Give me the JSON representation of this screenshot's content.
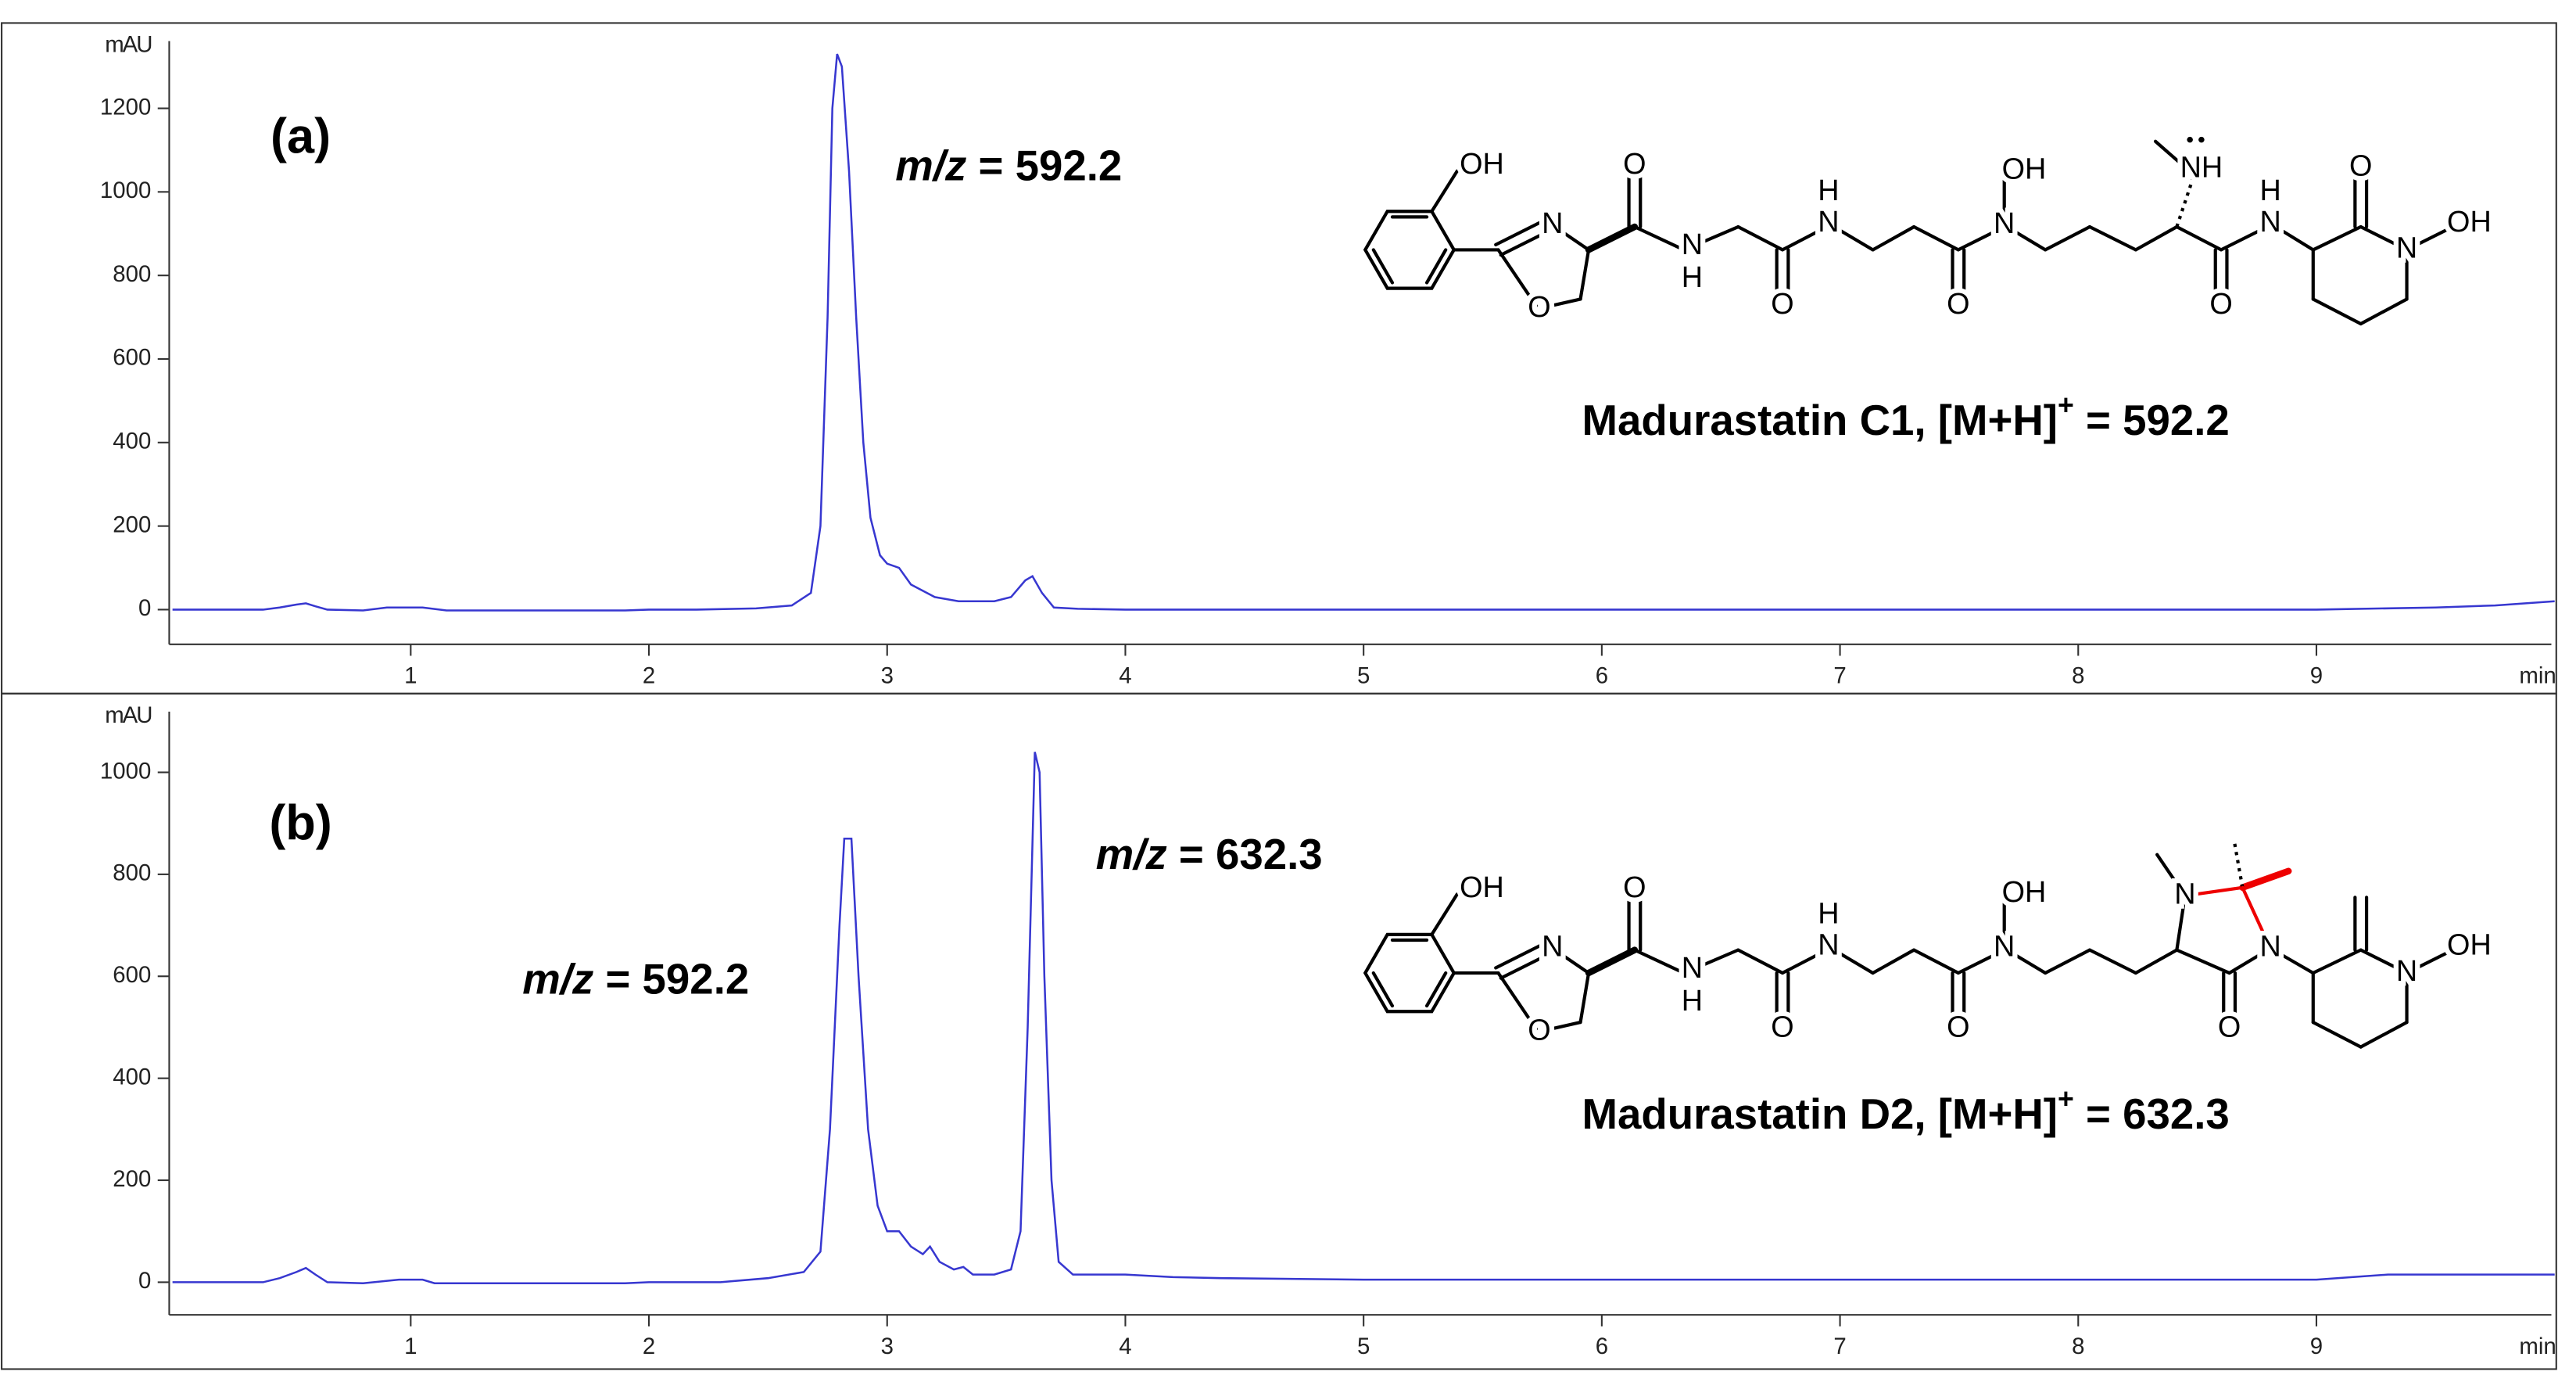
{
  "chart_data": [
    {
      "type": "line",
      "panel_label": "(a)",
      "ylabel": "mAU",
      "xlabel": "min",
      "xlim": [
        0,
        10
      ],
      "xticks": [
        1,
        2,
        3,
        4,
        5,
        6,
        7,
        8,
        9
      ],
      "ylim": [
        -83,
        1361
      ],
      "yticks": [
        0,
        200,
        400,
        600,
        800,
        1000,
        1200
      ],
      "color": "#3737d0",
      "x": [
        0,
        0.38,
        0.45,
        0.52,
        0.56,
        0.6,
        0.65,
        0.8,
        0.9,
        1.05,
        1.15,
        1.9,
        2.0,
        2.2,
        2.45,
        2.6,
        2.68,
        2.72,
        2.75,
        2.77,
        2.79,
        2.81,
        2.84,
        2.87,
        2.9,
        2.93,
        2.97,
        3.0,
        3.05,
        3.1,
        3.2,
        3.3,
        3.45,
        3.52,
        3.58,
        3.61,
        3.65,
        3.7,
        3.8,
        4.0,
        9.0,
        9.5,
        9.75,
        10
      ],
      "values": [
        0,
        0,
        5,
        12,
        15,
        8,
        0,
        -2,
        5,
        5,
        -2,
        -2,
        0,
        0,
        3,
        10,
        40,
        200,
        700,
        1200,
        1330,
        1300,
        1050,
        700,
        400,
        220,
        130,
        110,
        100,
        60,
        30,
        20,
        20,
        30,
        70,
        80,
        40,
        5,
        2,
        0,
        0,
        5,
        10,
        20
      ],
      "annotations": [
        "m/z = 592.2"
      ],
      "compound": "Madurastatin C1, [M+H]+ = 592.2",
      "structure_labels": [
        "OH",
        "N",
        "O",
        "O",
        "N",
        "H",
        "O",
        "N",
        "H",
        "O",
        "N",
        "OH",
        "NH",
        "O",
        "N",
        "H",
        "O",
        "N",
        "OH"
      ]
    },
    {
      "type": "line",
      "panel_label": "(b)",
      "ylabel": "mAU",
      "xlabel": "min",
      "xlim": [
        0,
        10
      ],
      "xticks": [
        1,
        2,
        3,
        4,
        5,
        6,
        7,
        8,
        9
      ],
      "ylim": [
        -64,
        1119
      ],
      "yticks": [
        0,
        200,
        400,
        600,
        800,
        1000
      ],
      "color": "#3737d0",
      "x": [
        0,
        0.38,
        0.45,
        0.52,
        0.56,
        0.6,
        0.65,
        0.8,
        0.95,
        1.05,
        1.1,
        1.9,
        2.0,
        2.3,
        2.5,
        2.65,
        2.72,
        2.76,
        2.8,
        2.82,
        2.85,
        2.88,
        2.92,
        2.96,
        3.0,
        3.05,
        3.1,
        3.15,
        3.18,
        3.22,
        3.28,
        3.32,
        3.36,
        3.45,
        3.52,
        3.56,
        3.59,
        3.62,
        3.64,
        3.66,
        3.69,
        3.72,
        3.78,
        4.0,
        4.2,
        4.4,
        5.0,
        9.0,
        9.3,
        10
      ],
      "values": [
        0,
        0,
        8,
        20,
        28,
        15,
        0,
        -2,
        5,
        5,
        -2,
        -2,
        0,
        0,
        8,
        20,
        60,
        300,
        700,
        870,
        870,
        600,
        300,
        150,
        100,
        100,
        70,
        55,
        70,
        40,
        25,
        30,
        15,
        15,
        25,
        100,
        500,
        1040,
        1000,
        600,
        200,
        40,
        15,
        15,
        10,
        8,
        5,
        5,
        15,
        15
      ],
      "annotations": [
        "m/z = 632.3",
        "m/z = 592.2"
      ],
      "compound": "Madurastatin D2, [M+H]+ = 632.3",
      "structure_labels": [
        "OH",
        "N",
        "O",
        "O",
        "N",
        "H",
        "O",
        "N",
        "H",
        "O",
        "N",
        "OH",
        "N",
        "N",
        "O",
        "N",
        "OH"
      ]
    }
  ]
}
